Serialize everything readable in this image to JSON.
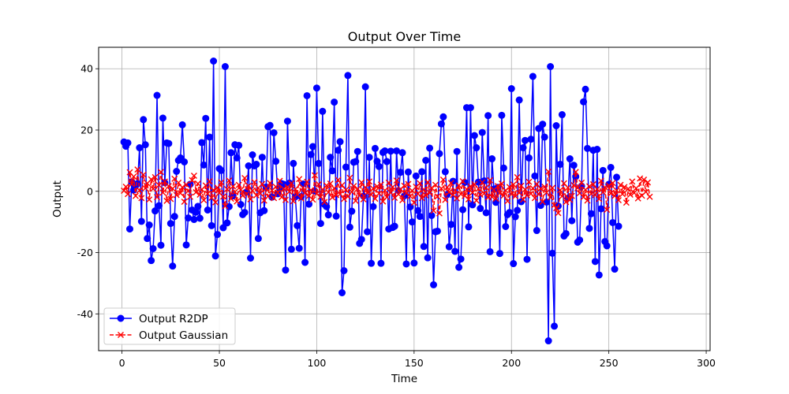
{
  "chart_data": {
    "type": "line",
    "title": "Output Over Time",
    "xlabel": "Time",
    "ylabel": "Output",
    "xlim": [
      -12,
      302
    ],
    "ylim": [
      -52,
      47
    ],
    "xticks": [
      0,
      50,
      100,
      150,
      200,
      250,
      300
    ],
    "yticks": [
      -40,
      -20,
      0,
      20,
      40
    ],
    "grid": true,
    "legend_position": "lower-left",
    "series": [
      {
        "name": "Output R2DP",
        "color": "#0000ff",
        "marker": "circle",
        "linestyle": "solid",
        "x_start": 1,
        "values": [
          16.1,
          14.7,
          15.8,
          -12.3,
          3.1,
          0.4,
          1.8,
          2.5,
          14.2,
          -9.8,
          23.4,
          15.2,
          -15.4,
          -11.0,
          -22.6,
          -18.7,
          -6.4,
          31.3,
          -4.7,
          -17.6,
          23.9,
          2.8,
          15.8,
          15.6,
          -10.5,
          -24.4,
          -8.2,
          6.5,
          10.1,
          10.9,
          21.7,
          9.6,
          -17.5,
          -8.7,
          2.3,
          -6.1,
          -9.2,
          -6.8,
          -4.9,
          -8.8,
          15.9,
          8.6,
          23.8,
          -6.1,
          17.7,
          -11.2,
          42.5,
          -21.1,
          -14.1,
          7.4,
          6.8,
          -11.9,
          40.7,
          -10.3,
          -5.0,
          12.6,
          -1.5,
          15.2,
          10.9,
          15.0,
          -4.3,
          -7.6,
          -6.9,
          -0.2,
          8.3,
          -21.8,
          11.9,
          8.3,
          8.8,
          -15.4,
          -7.0,
          11.1,
          -6.3,
          1.4,
          21.1,
          21.5,
          -1.9,
          19.1,
          9.8,
          -0.8,
          0.9,
          2.5,
          2.3,
          -25.7,
          22.9,
          2.7,
          -18.9,
          9.1,
          -1.8,
          -11.2,
          -18.6,
          -1.7,
          2.4,
          -23.2,
          31.2,
          -4.2,
          12.0,
          14.6,
          0.1,
          33.7,
          9.1,
          -10.5,
          26.1,
          -4.3,
          -5.0,
          -7.7,
          11.1,
          6.7,
          29.1,
          -8.1,
          13.4,
          16.2,
          -33.1,
          -25.9,
          7.9,
          37.8,
          -11.7,
          -6.5,
          9.5,
          9.7,
          13.0,
          -17.0,
          -15.7,
          -1.6,
          34.1,
          -13.2,
          11.1,
          -23.5,
          -5.0,
          14.0,
          9.8,
          8.1,
          -23.5,
          12.7,
          13.2,
          9.7,
          -12.3,
          13.1,
          -11.8,
          -11.4,
          13.2,
          0.2,
          6.2,
          12.6,
          -1.5,
          -23.7,
          6.3,
          -5.1,
          -10.0,
          -23.4,
          5.0,
          -6.3,
          -8.2,
          6.4,
          -18.0,
          10.1,
          -21.7,
          14.1,
          -7.9,
          -30.5,
          -13.2,
          -13.0,
          12.3,
          22.0,
          24.3,
          6.4,
          -1.1,
          -18.1,
          -10.8,
          3.3,
          -19.6,
          13.0,
          -24.8,
          -22.1,
          -6.0,
          2.9,
          27.3,
          -11.6,
          27.3,
          -4.4,
          18.2,
          14.2,
          3.0,
          -5.6,
          19.2,
          3.4,
          -7.0,
          24.7,
          -19.7,
          10.6,
          0.7,
          -3.6,
          1.3,
          -20.3,
          24.8,
          7.6,
          -11.5,
          -7.6,
          -6.9,
          33.5,
          -23.6,
          -8.3,
          -6.2,
          29.8,
          -3.4,
          14.2,
          16.6,
          -22.2,
          10.9,
          17.0,
          37.5,
          5.0,
          -12.8,
          20.5,
          -4.6,
          21.9,
          17.7,
          -3.5,
          -48.8,
          40.7,
          -20.2,
          -44.0,
          21.4,
          -4.8,
          8.8,
          25.0,
          -14.6,
          -13.8,
          -2.2,
          10.6,
          -9.6,
          8.5,
          4.8,
          -16.6,
          -15.9,
          1.7,
          29.2,
          33.3,
          14.0,
          -12.1,
          -7.3,
          13.4,
          -22.9,
          13.7,
          -27.3,
          -5.7,
          6.8,
          -16.4,
          -17.8,
          2.3,
          7.8,
          -10.2,
          -25.4,
          4.6,
          -11.4
        ]
      },
      {
        "name": "Output Gaussian",
        "color": "#ff0000",
        "marker": "x",
        "linestyle": "dashed",
        "x_start": 1,
        "values": [
          0.2,
          1.5,
          -0.9,
          6.2,
          2.4,
          4.8,
          -1.5,
          7.1,
          0.3,
          -2.2,
          5.4,
          1.0,
          2.6,
          -2.7,
          3.9,
          0.8,
          4.6,
          -1.9,
          2.0,
          6.3,
          -0.4,
          3.2,
          -3.1,
          1.7,
          -2.5,
          0.9,
          4.1,
          -1.2,
          2.8,
          -0.6,
          1.3,
          -3.4,
          2.2,
          0.1,
          -1.8,
          3.6,
          5.1,
          -0.3,
          2.5,
          -1.1,
          0.6,
          -2.9,
          1.9,
          -0.8,
          3.3,
          -2.1,
          0.4,
          -3.6,
          1.2,
          -0.5,
          2.9,
          -1.7,
          -4.8,
          0.7,
          3.5,
          -2.4,
          1.6,
          -0.2,
          -3.3,
          2.1,
          0.5,
          -1.4,
          4.3,
          -0.9,
          1.8,
          -2.6,
          0.2,
          3.0,
          -1.3,
          1.1,
          -0.7,
          2.4,
          -3.0,
          0.9,
          -1.6,
          2.7,
          0.3,
          -2.2,
          1.5,
          -0.4,
          3.4,
          -1.9,
          0.8,
          -2.8,
          1.4,
          -0.1,
          2.6,
          -3.2,
          0.7,
          -1.0,
          4.0,
          -2.3,
          1.2,
          -0.6,
          3.1,
          -1.5,
          0.4,
          -2.7,
          5.2,
          -0.8,
          2.3,
          -1.8,
          0.6,
          -3.5,
          1.9,
          -0.3,
          2.5,
          -2.0,
          1.0,
          -1.2,
          3.7,
          -0.9,
          2.0,
          -2.5,
          0.5,
          -1.7,
          4.4,
          -0.2,
          1.7,
          -3.1,
          0.8,
          -1.4,
          2.9,
          -2.6,
          1.3,
          -0.5,
          3.2,
          -1.1,
          0.9,
          -2.4,
          1.6,
          -0.7,
          2.2,
          -3.3,
          0.3,
          -1.9,
          2.8,
          -0.4,
          1.4,
          -2.1,
          3.5,
          -1.0,
          0.7,
          -2.9,
          1.8,
          -0.6,
          2.4,
          -1.6,
          0.2,
          -3.7,
          1.5,
          -0.8,
          2.6,
          -2.2,
          0.6,
          -1.3,
          3.0,
          -0.5,
          1.1,
          -6.3,
          2.1,
          -1.7,
          -7.2,
          0.9,
          3.8,
          -2.8,
          1.3,
          -0.3,
          2.7,
          -1.2,
          0.4,
          -2.3,
          1.9,
          -0.9,
          3.3,
          -1.5,
          0.7,
          -2.6,
          1.6,
          -0.4,
          2.3,
          -3.0,
          0.8,
          -1.1,
          2.9,
          -0.7,
          1.2,
          -2.0,
          3.6,
          -1.8,
          0.5,
          -2.4,
          1.7,
          -0.6,
          2.5,
          -1.4,
          0.3,
          -3.2,
          1.4,
          -0.9,
          2.2,
          -1.6,
          4.6,
          -0.5,
          1.8,
          -2.7,
          0.6,
          -1.3,
          3.1,
          -0.8,
          1.0,
          -2.2,
          2.4,
          -1.0,
          0.9,
          -3.4,
          1.5,
          -0.4,
          6.4,
          -2.0,
          1.1,
          -4.5,
          -5.5,
          -7.1,
          0.4,
          -1.6,
          2.6,
          -3.5,
          1.2,
          -2.8,
          -1.5,
          2.0,
          6.3,
          1.1,
          -0.6,
          2.8,
          -1.9,
          0.5,
          -3.0,
          1.6,
          -0.8,
          2.3,
          -1.2,
          0.7,
          -2.5,
          3.4,
          -0.3,
          1.3,
          -6.0,
          1.9,
          -0.7,
          2.7,
          -1.5,
          0.3,
          -2.9,
          2.1,
          -0.9,
          1.4,
          -3.7,
          0.8,
          -1.1,
          3.2,
          -0.5,
          1.0,
          -2.3,
          4.2,
          -1.4,
          3.8,
          -0.2,
          2.9,
          -1.8
        ]
      }
    ]
  }
}
